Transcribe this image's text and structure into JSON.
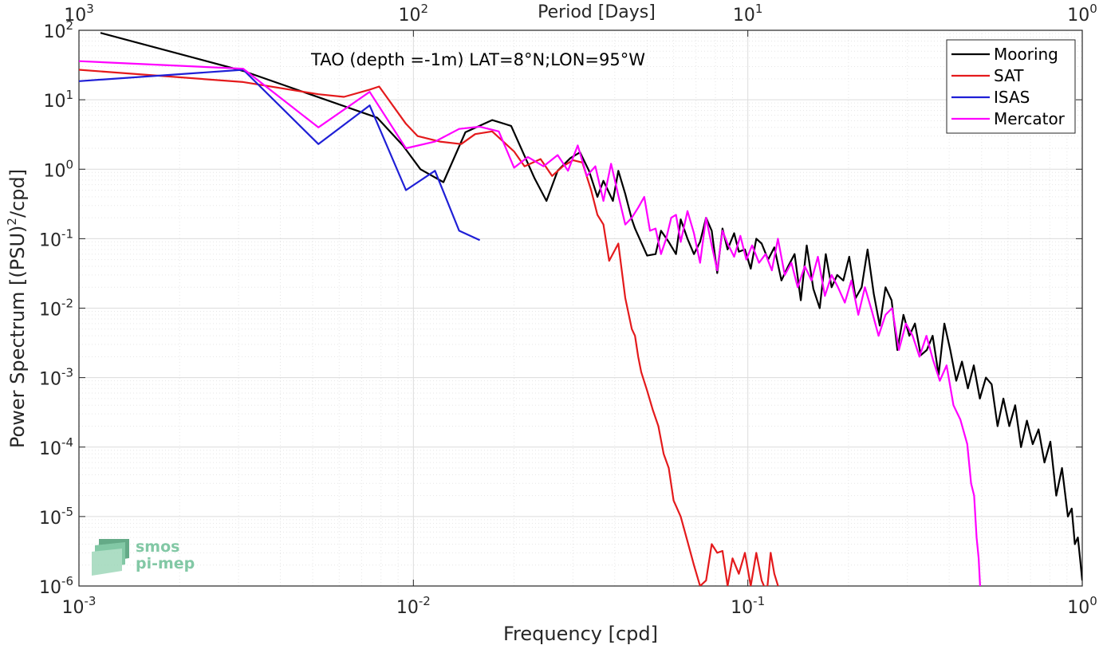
{
  "chart_data": {
    "type": "line",
    "title": "",
    "annotation": "TAO (depth =-1m) LAT=8°N;LON=95°W",
    "xlabel": "Frequency [cpd]",
    "ylabel": "Power Spectrum [(PSU)",
    "ylabel_sup": "2",
    "ylabel_tail": "/cpd]",
    "x2label": "Period [Days]",
    "xscale": "log",
    "yscale": "log",
    "xlim": [
      0.001,
      1
    ],
    "ylim": [
      1e-06,
      100
    ],
    "grid": true,
    "legend_position": "top-right",
    "xticks": [
      {
        "value": 0.001,
        "base": "10",
        "exp": "-3"
      },
      {
        "value": 0.01,
        "base": "10",
        "exp": "-2"
      },
      {
        "value": 0.1,
        "base": "10",
        "exp": "-1"
      },
      {
        "value": 1,
        "base": "10",
        "exp": "0"
      }
    ],
    "x2ticks": [
      {
        "value": 0.001,
        "base": "10",
        "exp": "3"
      },
      {
        "value": 0.01,
        "base": "10",
        "exp": "2"
      },
      {
        "value": 0.1,
        "base": "10",
        "exp": "1"
      },
      {
        "value": 1,
        "base": "10",
        "exp": "0"
      }
    ],
    "yticks": [
      {
        "value": 100,
        "base": "10",
        "exp": "2"
      },
      {
        "value": 10,
        "base": "10",
        "exp": "1"
      },
      {
        "value": 1,
        "base": "10",
        "exp": "0"
      },
      {
        "value": 0.1,
        "base": "10",
        "exp": "-1"
      },
      {
        "value": 0.01,
        "base": "10",
        "exp": "-2"
      },
      {
        "value": 0.001,
        "base": "10",
        "exp": "-3"
      },
      {
        "value": 0.0001,
        "base": "10",
        "exp": "-4"
      },
      {
        "value": 1e-05,
        "base": "10",
        "exp": "-5"
      },
      {
        "value": 1e-06,
        "base": "10",
        "exp": "-6"
      }
    ],
    "series": [
      {
        "name": "Mooring",
        "color": "#000000",
        "x": [
          0.00116,
          0.0031,
          0.0078,
          0.0093,
          0.0105,
          0.0123,
          0.0143,
          0.0172,
          0.0196,
          0.023,
          0.025,
          0.027,
          0.0295,
          0.0315,
          0.0335,
          0.0355,
          0.037,
          0.0395,
          0.041,
          0.043,
          0.045,
          0.046,
          0.05,
          0.053,
          0.055,
          0.058,
          0.061,
          0.063,
          0.066,
          0.069,
          0.072,
          0.075,
          0.078,
          0.081,
          0.084,
          0.087,
          0.091,
          0.094,
          0.098,
          0.102,
          0.106,
          0.11,
          0.115,
          0.12,
          0.126,
          0.132,
          0.138,
          0.144,
          0.15,
          0.157,
          0.164,
          0.171,
          0.178,
          0.185,
          0.193,
          0.201,
          0.21,
          0.219,
          0.228,
          0.238,
          0.248,
          0.258,
          0.269,
          0.28,
          0.292,
          0.304,
          0.316,
          0.329,
          0.343,
          0.357,
          0.372,
          0.387,
          0.403,
          0.42,
          0.437,
          0.455,
          0.474,
          0.494,
          0.515,
          0.536,
          0.558,
          0.581,
          0.605,
          0.63,
          0.656,
          0.683,
          0.711,
          0.74,
          0.771,
          0.803,
          0.836,
          0.87,
          0.906,
          0.93,
          0.95,
          0.97,
          0.985,
          1.0
        ],
        "y": [
          92,
          26,
          5.5,
          2.2,
          1.0,
          0.65,
          3.4,
          5.1,
          4.2,
          0.75,
          0.35,
          0.95,
          1.45,
          1.75,
          0.95,
          0.4,
          0.68,
          0.35,
          0.95,
          0.44,
          0.19,
          0.14,
          0.057,
          0.06,
          0.13,
          0.09,
          0.06,
          0.19,
          0.1,
          0.06,
          0.09,
          0.2,
          0.13,
          0.032,
          0.14,
          0.07,
          0.12,
          0.065,
          0.07,
          0.037,
          0.1,
          0.085,
          0.05,
          0.075,
          0.025,
          0.04,
          0.06,
          0.013,
          0.08,
          0.019,
          0.01,
          0.06,
          0.02,
          0.03,
          0.025,
          0.055,
          0.014,
          0.02,
          0.07,
          0.016,
          0.0056,
          0.02,
          0.013,
          0.0025,
          0.008,
          0.004,
          0.006,
          0.0021,
          0.0025,
          0.004,
          0.0011,
          0.006,
          0.0025,
          0.0009,
          0.0017,
          0.0007,
          0.0015,
          0.0005,
          0.001,
          0.0008,
          0.0002,
          0.0005,
          0.0002,
          0.0004,
          0.0001,
          0.00024,
          0.00011,
          0.00018,
          6e-05,
          0.00012,
          2e-05,
          5e-05,
          1e-05,
          1.3e-05,
          4e-06,
          5e-06,
          2.5e-06,
          1.2e-06
        ]
      },
      {
        "name": "SAT",
        "color": "#e41a1c",
        "x": [
          0.001,
          0.0031,
          0.0052,
          0.0062,
          0.0074,
          0.0079,
          0.0095,
          0.0103,
          0.012,
          0.0139,
          0.0153,
          0.0172,
          0.02,
          0.0215,
          0.024,
          0.026,
          0.028,
          0.03,
          0.032,
          0.034,
          0.0355,
          0.037,
          0.0385,
          0.041,
          0.043,
          0.045,
          0.046,
          0.047,
          0.048,
          0.05,
          0.052,
          0.054,
          0.056,
          0.058,
          0.06,
          0.063,
          0.066,
          0.069,
          0.072,
          0.075,
          0.078,
          0.081,
          0.084,
          0.087,
          0.09,
          0.094,
          0.098,
          0.102,
          0.106,
          0.11,
          0.114,
          0.117,
          0.12,
          0.124
        ],
        "y": [
          27,
          18,
          12,
          11,
          14,
          15.5,
          4.5,
          3.0,
          2.5,
          2.3,
          3.2,
          3.5,
          1.8,
          1.1,
          1.4,
          0.8,
          1.1,
          1.35,
          1.25,
          0.5,
          0.22,
          0.16,
          0.048,
          0.085,
          0.014,
          0.005,
          0.004,
          0.002,
          0.0012,
          0.00065,
          0.00034,
          0.0002,
          8e-05,
          5e-05,
          1.7e-05,
          1e-05,
          4.4e-06,
          2e-06,
          1e-06,
          1.2e-06,
          4e-06,
          3e-06,
          3.2e-06,
          1e-06,
          2.5e-06,
          1.5e-06,
          3e-06,
          1e-06,
          3e-06,
          1.2e-06,
          8e-07,
          3e-06,
          1.5e-06,
          9e-07
        ]
      },
      {
        "name": "ISAS",
        "color": "#1f1fd6",
        "x": [
          0.001,
          0.0031,
          0.0052,
          0.0074,
          0.0095,
          0.0116,
          0.0137,
          0.0158
        ],
        "y": [
          18.5,
          27,
          2.3,
          8.3,
          0.5,
          0.95,
          0.13,
          0.095
        ]
      },
      {
        "name": "Mercator",
        "color": "#ff00ff",
        "x": [
          0.001,
          0.0031,
          0.0052,
          0.0074,
          0.0095,
          0.0116,
          0.0137,
          0.0158,
          0.018,
          0.02,
          0.022,
          0.0245,
          0.027,
          0.029,
          0.031,
          0.033,
          0.035,
          0.037,
          0.039,
          0.041,
          0.043,
          0.045,
          0.047,
          0.049,
          0.051,
          0.053,
          0.055,
          0.057,
          0.059,
          0.061,
          0.063,
          0.066,
          0.069,
          0.072,
          0.075,
          0.078,
          0.081,
          0.084,
          0.087,
          0.091,
          0.095,
          0.099,
          0.103,
          0.108,
          0.113,
          0.118,
          0.123,
          0.129,
          0.135,
          0.141,
          0.148,
          0.155,
          0.162,
          0.17,
          0.178,
          0.186,
          0.195,
          0.204,
          0.214,
          0.224,
          0.235,
          0.246,
          0.258,
          0.27,
          0.283,
          0.297,
          0.311,
          0.326,
          0.342,
          0.358,
          0.375,
          0.393,
          0.412,
          0.432,
          0.453,
          0.465,
          0.475,
          0.483,
          0.49,
          0.495
        ],
        "y": [
          36,
          28,
          4.0,
          13,
          2.0,
          2.5,
          3.8,
          4.1,
          3.5,
          1.05,
          1.5,
          1.1,
          1.6,
          0.95,
          2.2,
          0.8,
          1.1,
          0.35,
          1.2,
          0.42,
          0.16,
          0.2,
          0.28,
          0.4,
          0.13,
          0.14,
          0.06,
          0.1,
          0.2,
          0.22,
          0.09,
          0.25,
          0.12,
          0.045,
          0.2,
          0.08,
          0.035,
          0.13,
          0.085,
          0.055,
          0.11,
          0.05,
          0.08,
          0.045,
          0.06,
          0.035,
          0.1,
          0.03,
          0.045,
          0.02,
          0.04,
          0.025,
          0.055,
          0.015,
          0.03,
          0.02,
          0.012,
          0.025,
          0.008,
          0.02,
          0.009,
          0.004,
          0.008,
          0.01,
          0.0025,
          0.006,
          0.004,
          0.002,
          0.004,
          0.0018,
          0.0009,
          0.0015,
          0.0004,
          0.00025,
          0.00011,
          3e-05,
          2e-05,
          5e-06,
          2.5e-06,
          1e-06
        ]
      }
    ]
  },
  "logo": {
    "line1": "smos",
    "line2": "pi-mep"
  }
}
